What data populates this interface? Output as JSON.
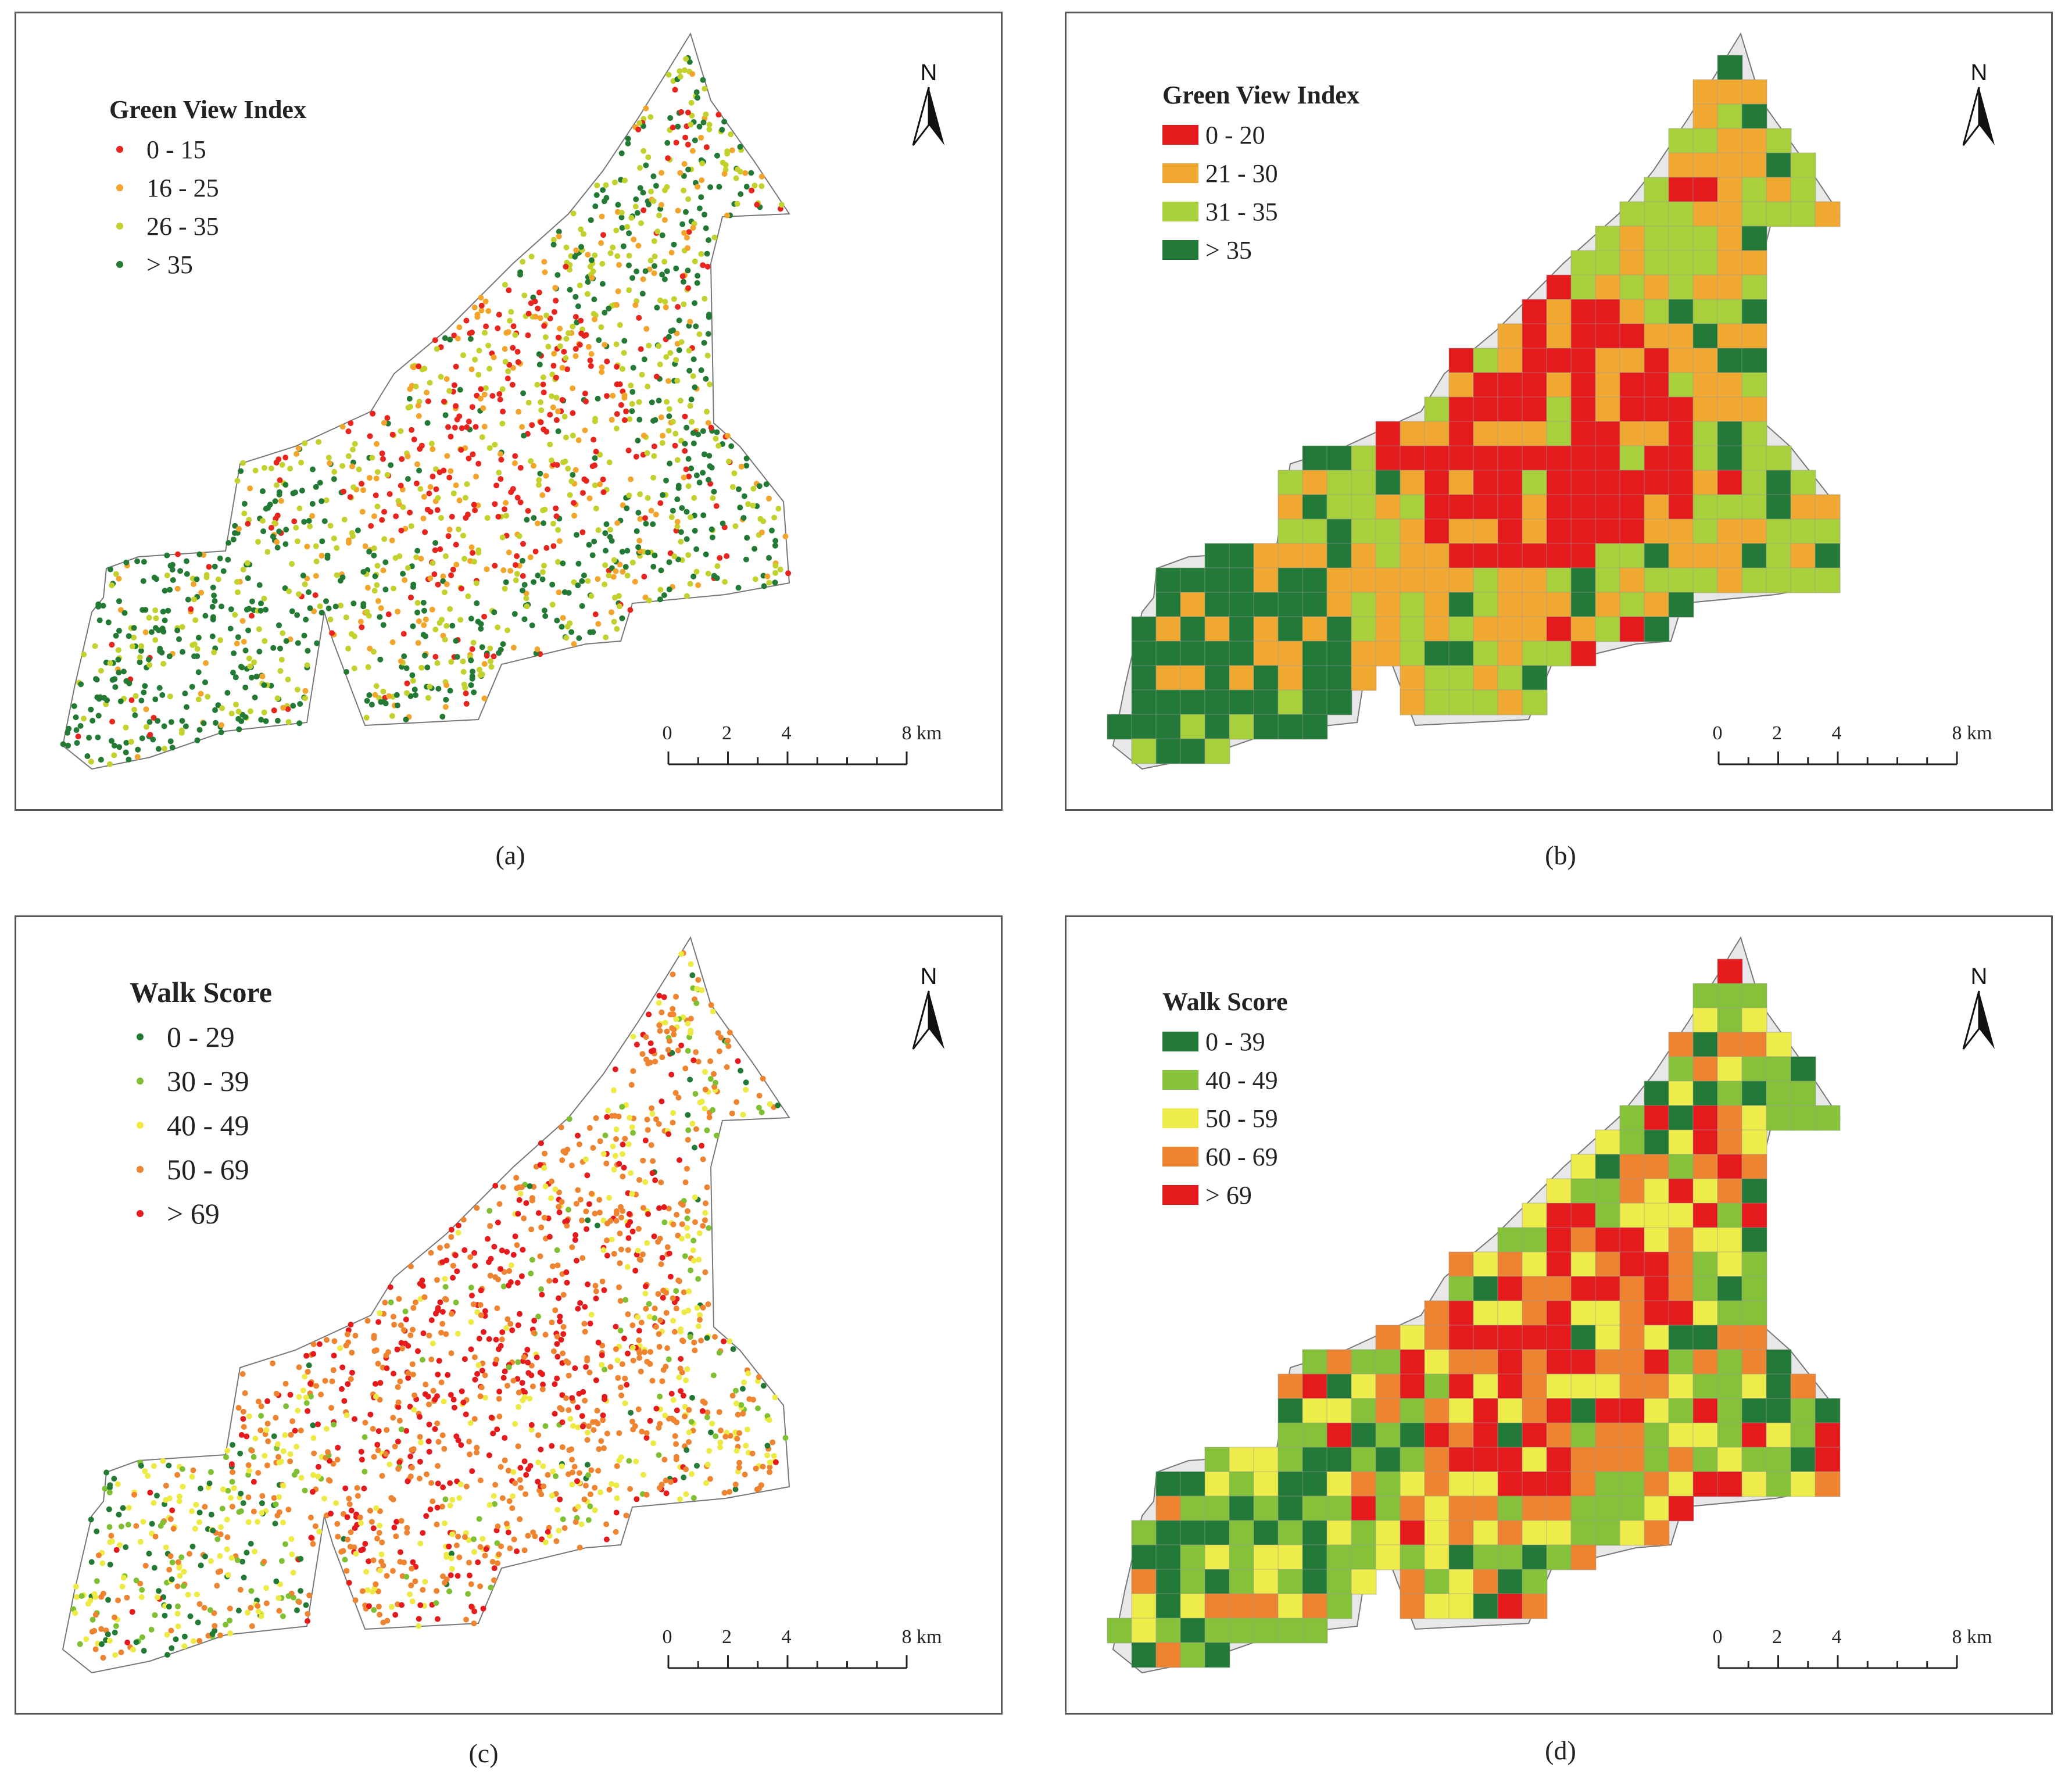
{
  "panels": [
    {
      "id": "a",
      "caption": "(a)",
      "legend_title": "Green View Index",
      "legend_style": "dot",
      "legend": [
        {
          "label": "0 - 15",
          "color": "#e8241e"
        },
        {
          "label": "16 - 25",
          "color": "#f2a52a"
        },
        {
          "label": "26 - 35",
          "color": "#c3d12c"
        },
        {
          "label": "> 35",
          "color": "#237a35"
        }
      ],
      "north": "N",
      "scale": [
        "0",
        "2",
        "4",
        "8 km"
      ]
    },
    {
      "id": "b",
      "caption": "(b)",
      "legend_title": "Green View Index",
      "legend_style": "swatch",
      "legend": [
        {
          "label": "0 - 20",
          "color": "#e41a1c"
        },
        {
          "label": "21 - 30",
          "color": "#f0a830"
        },
        {
          "label": "31 - 35",
          "color": "#a8cf3c"
        },
        {
          "label": "> 35",
          "color": "#237a38"
        }
      ],
      "north": "N",
      "scale": [
        "0",
        "2",
        "4",
        "8 km"
      ]
    },
    {
      "id": "c",
      "caption": "(c)",
      "legend_title": "Walk Score",
      "legend_style": "dot",
      "legend": [
        {
          "label": "0 - 29",
          "color": "#237a35"
        },
        {
          "label": "30 - 39",
          "color": "#7fc033"
        },
        {
          "label": "40 - 49",
          "color": "#eeea44"
        },
        {
          "label": "50 - 69",
          "color": "#ee8330"
        },
        {
          "label": "> 69",
          "color": "#e41a1c"
        }
      ],
      "north": "N",
      "scale": [
        "0",
        "2",
        "4",
        "8 km"
      ]
    },
    {
      "id": "d",
      "caption": "(d)",
      "legend_title": "Walk Score",
      "legend_style": "swatch",
      "legend": [
        {
          "label": "0 - 39",
          "color": "#237a38"
        },
        {
          "label": "40 - 49",
          "color": "#86c13a"
        },
        {
          "label": "50 - 59",
          "color": "#eeec4a"
        },
        {
          "label": "60 - 69",
          "color": "#ee8330"
        },
        {
          "label": "> 69",
          "color": "#e41a1c"
        }
      ],
      "north": "N",
      "scale": [
        "0",
        "2",
        "4",
        "8 km"
      ]
    }
  ]
}
